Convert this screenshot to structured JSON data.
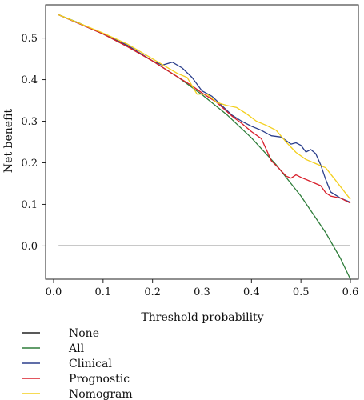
{
  "chart_data": {
    "type": "line",
    "xlabel": "Threshold probability",
    "ylabel": "Net benefit",
    "xlim": [
      0.0,
      0.6
    ],
    "ylim": [
      -0.08,
      0.58
    ],
    "xticks": [
      0.0,
      0.1,
      0.2,
      0.3,
      0.4,
      0.5,
      0.6
    ],
    "xtick_labels": [
      "0.0",
      "0.1",
      "0.2",
      "0.3",
      "0.4",
      "0.5",
      "0.6"
    ],
    "yticks": [
      0.0,
      0.1,
      0.2,
      0.3,
      0.4,
      0.5
    ],
    "ytick_labels": [
      "0.0",
      "0.1",
      "0.2",
      "0.3",
      "0.4",
      "0.5"
    ],
    "grid": false,
    "legend_position": "below",
    "series": [
      {
        "name": "None",
        "color": "#222222",
        "x": [
          0.01,
          0.6
        ],
        "y": [
          0.0,
          0.0
        ]
      },
      {
        "name": "All",
        "color": "#2e7d3a",
        "x": [
          0.01,
          0.05,
          0.1,
          0.15,
          0.2,
          0.25,
          0.3,
          0.35,
          0.4,
          0.45,
          0.5,
          0.55,
          0.58,
          0.6
        ],
        "y": [
          0.556,
          0.537,
          0.51,
          0.479,
          0.445,
          0.407,
          0.364,
          0.316,
          0.26,
          0.195,
          0.12,
          0.032,
          -0.03,
          -0.08
        ]
      },
      {
        "name": "Clinical",
        "color": "#2b3f8c",
        "x": [
          0.01,
          0.1,
          0.15,
          0.2,
          0.22,
          0.24,
          0.26,
          0.28,
          0.3,
          0.32,
          0.34,
          0.36,
          0.38,
          0.4,
          0.42,
          0.44,
          0.46,
          0.48,
          0.49,
          0.5,
          0.51,
          0.52,
          0.53,
          0.54,
          0.55,
          0.56,
          0.58,
          0.6
        ],
        "y": [
          0.556,
          0.51,
          0.482,
          0.445,
          0.435,
          0.442,
          0.428,
          0.405,
          0.373,
          0.36,
          0.338,
          0.315,
          0.3,
          0.288,
          0.278,
          0.265,
          0.262,
          0.245,
          0.248,
          0.242,
          0.226,
          0.232,
          0.222,
          0.195,
          0.16,
          0.13,
          0.115,
          0.105
        ]
      },
      {
        "name": "Prognostic",
        "color": "#d81e2a",
        "x": [
          0.01,
          0.1,
          0.15,
          0.2,
          0.25,
          0.28,
          0.3,
          0.33,
          0.36,
          0.38,
          0.4,
          0.42,
          0.43,
          0.44,
          0.45,
          0.47,
          0.48,
          0.49,
          0.5,
          0.52,
          0.54,
          0.55,
          0.56,
          0.58,
          0.6
        ],
        "y": [
          0.556,
          0.51,
          0.479,
          0.445,
          0.407,
          0.385,
          0.368,
          0.345,
          0.313,
          0.295,
          0.275,
          0.258,
          0.232,
          0.205,
          0.193,
          0.168,
          0.163,
          0.171,
          0.165,
          0.155,
          0.145,
          0.128,
          0.12,
          0.115,
          0.103
        ]
      },
      {
        "name": "Nomogram",
        "color": "#f3cf1d",
        "x": [
          0.01,
          0.1,
          0.15,
          0.2,
          0.25,
          0.27,
          0.29,
          0.31,
          0.33,
          0.35,
          0.37,
          0.39,
          0.41,
          0.43,
          0.45,
          0.47,
          0.49,
          0.51,
          0.53,
          0.55,
          0.57,
          0.6
        ],
        "y": [
          0.556,
          0.512,
          0.485,
          0.45,
          0.415,
          0.405,
          0.365,
          0.365,
          0.345,
          0.338,
          0.333,
          0.318,
          0.3,
          0.29,
          0.278,
          0.25,
          0.225,
          0.208,
          0.198,
          0.188,
          0.158,
          0.112
        ]
      }
    ]
  }
}
